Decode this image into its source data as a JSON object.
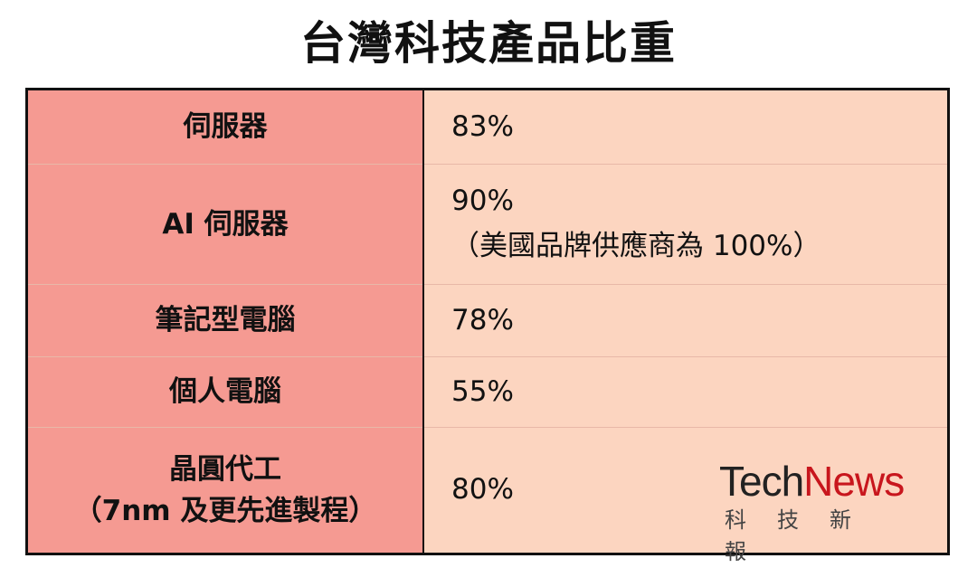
{
  "title": "台灣科技產品比重",
  "rows": [
    {
      "label": [
        "伺服器"
      ],
      "value": [
        "83%"
      ]
    },
    {
      "label": [
        "AI 伺服器"
      ],
      "value": [
        "90%",
        "（美國品牌供應商為 100%）"
      ]
    },
    {
      "label": [
        "筆記型電腦"
      ],
      "value": [
        "78%"
      ]
    },
    {
      "label": [
        "個人電腦"
      ],
      "value": [
        "55%"
      ]
    },
    {
      "label": [
        "晶圓代工",
        "（7nm 及更先進製程）"
      ],
      "value": [
        "80%"
      ]
    }
  ],
  "logo": {
    "tech": "Tech",
    "news": "News",
    "subtitle": "科技新報"
  },
  "colors": {
    "label_bg": "#f59a92",
    "value_bg": "#fcd5c0",
    "logo_red": "#c8161d"
  }
}
